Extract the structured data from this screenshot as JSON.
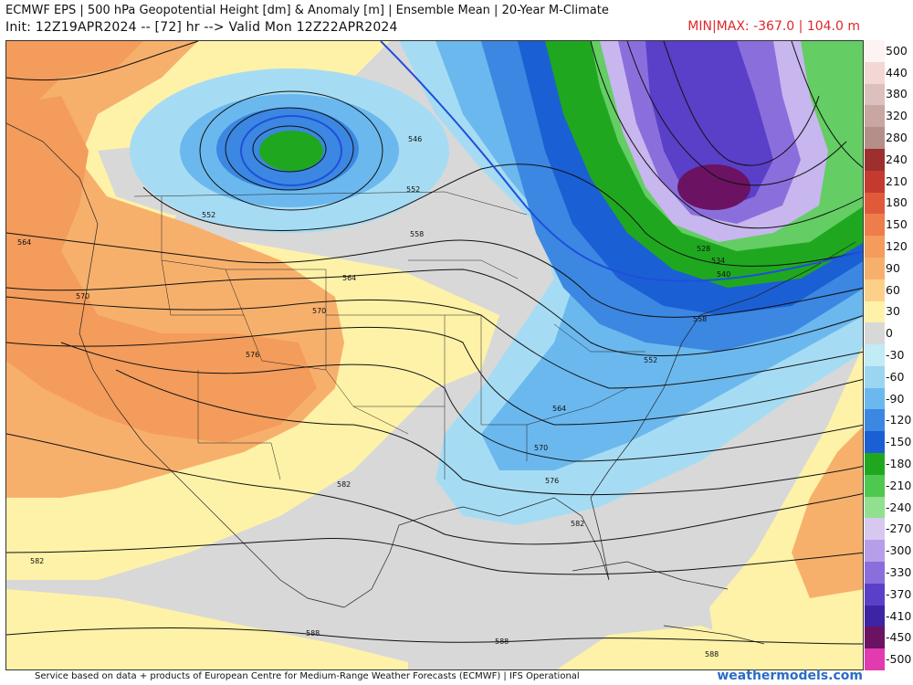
{
  "header": {
    "title": "ECMWF EPS | 500 hPa Geopotential Height [dm] & Anomaly [m] | Ensemble Mean | 20-Year M-Climate",
    "init_line": "Init: 12Z19APR2024 -- [72] hr --> Valid Mon 12Z22APR2024",
    "minmax": "MIN|MAX: -367.0 | 104.0 m"
  },
  "legend": {
    "labels": [
      "500",
      "440",
      "380",
      "320",
      "280",
      "240",
      "210",
      "180",
      "150",
      "120",
      "90",
      "60",
      "30",
      "0",
      "-30",
      "-60",
      "-90",
      "-120",
      "-150",
      "-180",
      "-210",
      "-240",
      "-270",
      "-300",
      "-330",
      "-370",
      "-410",
      "-450",
      "-500"
    ],
    "colors": [
      "#fdf3f2",
      "#f3d7d5",
      "#dcc0bd",
      "#c8a6a2",
      "#b48e89",
      "#9d2f2f",
      "#c43a2f",
      "#e05a3a",
      "#ee7d4c",
      "#f39c5b",
      "#f7b06c",
      "#fcd08a",
      "#fef2a8",
      "#d8d8d8",
      "#c1ebf5",
      "#9ad6f2",
      "#6bb8ee",
      "#3b87e2",
      "#1b5fd4",
      "#1fa81f",
      "#4fc84f",
      "#90e090",
      "#d7c8f0",
      "#b79ee8",
      "#8a6fdc",
      "#5a3fc8",
      "#3c24a4",
      "#6b1262",
      "#e23bb0"
    ],
    "extra_colors": [
      "#f4a0dc"
    ]
  },
  "map": {
    "contour_labels": [
      "546",
      "552",
      "552",
      "558",
      "564",
      "564",
      "570",
      "570",
      "576",
      "582",
      "582",
      "588",
      "588",
      "588",
      "546",
      "552",
      "558",
      "564",
      "570",
      "576",
      "582",
      "528",
      "534",
      "540"
    ],
    "colors": {
      "ridge_orange": "#f3a566",
      "ridge_light": "#fccf8a",
      "yellow": "#fef2a8",
      "neutral": "#d8d8d8",
      "lightblue": "#a6dcf3",
      "midblue": "#5aa6e8",
      "darkblue": "#2f73dc",
      "green": "#1fa81f",
      "lightgreen": "#64cd64",
      "lavender": "#c8b6ee",
      "purple": "#7a5fd6",
      "darkpurple": "#4a2cac",
      "plum": "#6b1262",
      "contour": "#111111",
      "zero_line": "#1f4fdc"
    }
  },
  "footer": {
    "credit": "Service based on data + products of European Centre for Medium-Range Weather Forecasts (ECMWF) | IFS Operational",
    "brand": "weathermodels.com"
  }
}
